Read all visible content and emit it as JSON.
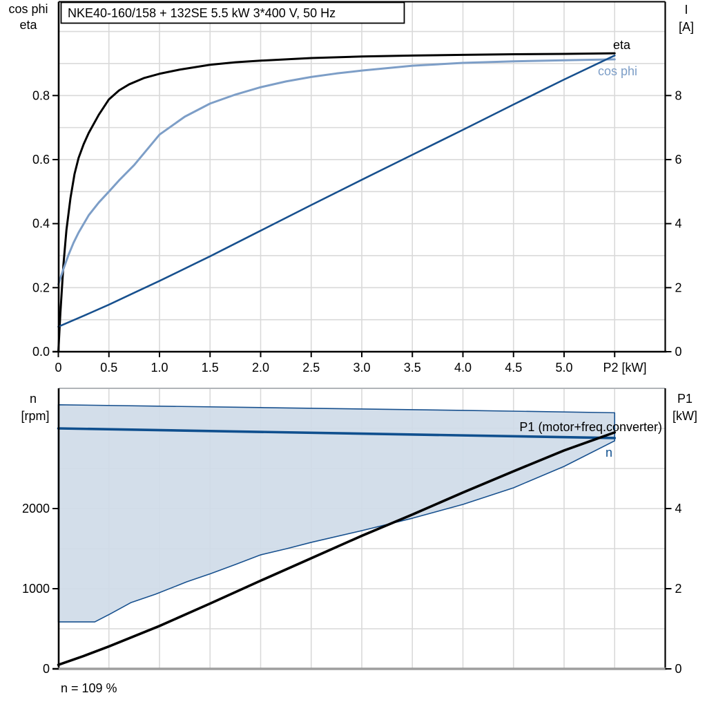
{
  "colors": {
    "eta": "#000000",
    "cos_phi": "#7d9ec7",
    "current": "#17508e",
    "n_line": "#0f4f8e",
    "p1_line": "#000000",
    "band_fill": "#cfdbe8",
    "band_edge": "#17508e",
    "grid": "#d9d9d9",
    "axis": "#000000",
    "axis_gray": "#9e9e9e",
    "frame_top_gray": "#b0b4b8"
  },
  "chart_data": [
    {
      "type": "line",
      "title": "NKE40-160/158 + 132SE   5.5 kW   3*400 V, 50 Hz",
      "y_left_header": [
        "cos phi",
        "eta"
      ],
      "y_right_header": [
        "I",
        "[A]"
      ],
      "xlabel": "P2 [kW]",
      "x_range": [
        0,
        6
      ],
      "x_grid_step": 0.5,
      "y_left_range": [
        0,
        1.093
      ],
      "y_left_grid_step": 0.1,
      "y_right_range": [
        0,
        10.93
      ],
      "y_right_grid_step": 1,
      "legend_position": "end-of-curve",
      "x_ticks": [
        {
          "v": 0,
          "t": "0"
        },
        {
          "v": 0.5,
          "t": "0.5"
        },
        {
          "v": 1,
          "t": "1.0"
        },
        {
          "v": 1.5,
          "t": "1.5"
        },
        {
          "v": 2,
          "t": "2.0"
        },
        {
          "v": 2.5,
          "t": "2.5"
        },
        {
          "v": 3,
          "t": "3.0"
        },
        {
          "v": 3.5,
          "t": "3.5"
        },
        {
          "v": 4,
          "t": "4.0"
        },
        {
          "v": 4.5,
          "t": "4.5"
        },
        {
          "v": 5,
          "t": "5.0"
        },
        {
          "v": 5.5,
          "t": ""
        }
      ],
      "y_left_ticks": [
        {
          "v": 0,
          "t": "0.0"
        },
        {
          "v": 0.2,
          "t": "0.2"
        },
        {
          "v": 0.4,
          "t": "0.4"
        },
        {
          "v": 0.6,
          "t": "0.6"
        },
        {
          "v": 0.8,
          "t": "0.8"
        }
      ],
      "y_right_ticks": [
        {
          "v": 0,
          "t": "0"
        },
        {
          "v": 2,
          "t": "2"
        },
        {
          "v": 4,
          "t": "4"
        },
        {
          "v": 6,
          "t": "6"
        },
        {
          "v": 8,
          "t": "8"
        }
      ],
      "series": [
        {
          "name": "eta",
          "axis": "left",
          "color_key": "eta",
          "width": 3,
          "label": "eta",
          "points": [
            [
              0,
              0
            ],
            [
              0.02,
              0.12
            ],
            [
              0.05,
              0.27
            ],
            [
              0.08,
              0.38
            ],
            [
              0.12,
              0.48
            ],
            [
              0.16,
              0.555
            ],
            [
              0.2,
              0.605
            ],
            [
              0.25,
              0.648
            ],
            [
              0.3,
              0.683
            ],
            [
              0.4,
              0.74
            ],
            [
              0.5,
              0.788
            ],
            [
              0.6,
              0.816
            ],
            [
              0.7,
              0.835
            ],
            [
              0.85,
              0.855
            ],
            [
              1,
              0.868
            ],
            [
              1.2,
              0.881
            ],
            [
              1.5,
              0.896
            ],
            [
              1.75,
              0.904
            ],
            [
              2,
              0.909
            ],
            [
              2.5,
              0.917
            ],
            [
              3,
              0.922
            ],
            [
              3.5,
              0.925
            ],
            [
              4,
              0.927
            ],
            [
              4.5,
              0.929
            ],
            [
              5,
              0.93
            ],
            [
              5.5,
              0.932
            ]
          ]
        },
        {
          "name": "cos phi",
          "axis": "left",
          "color_key": "cos_phi",
          "width": 3,
          "label": "cos phi",
          "points": [
            [
              0,
              0.21
            ],
            [
              0.05,
              0.258
            ],
            [
              0.1,
              0.302
            ],
            [
              0.15,
              0.34
            ],
            [
              0.2,
              0.372
            ],
            [
              0.3,
              0.426
            ],
            [
              0.4,
              0.466
            ],
            [
              0.5,
              0.5
            ],
            [
              0.6,
              0.535
            ],
            [
              0.75,
              0.583
            ],
            [
              0.9,
              0.64
            ],
            [
              1,
              0.678
            ],
            [
              1.25,
              0.734
            ],
            [
              1.5,
              0.775
            ],
            [
              1.75,
              0.803
            ],
            [
              2,
              0.826
            ],
            [
              2.25,
              0.844
            ],
            [
              2.5,
              0.858
            ],
            [
              2.75,
              0.869
            ],
            [
              3,
              0.878
            ],
            [
              3.5,
              0.893
            ],
            [
              4,
              0.902
            ],
            [
              4.5,
              0.907
            ],
            [
              5,
              0.91
            ],
            [
              5.5,
              0.913
            ]
          ]
        },
        {
          "name": "I",
          "axis": "right",
          "color_key": "current",
          "width": 2.6,
          "label": "",
          "points": [
            [
              0,
              0.78
            ],
            [
              0.25,
              1.12
            ],
            [
              0.5,
              1.47
            ],
            [
              0.75,
              1.84
            ],
            [
              1,
              2.21
            ],
            [
              1.5,
              2.98
            ],
            [
              2,
              3.78
            ],
            [
              2.5,
              4.58
            ],
            [
              3,
              5.37
            ],
            [
              3.5,
              6.15
            ],
            [
              4,
              6.93
            ],
            [
              4.5,
              7.72
            ],
            [
              5,
              8.5
            ],
            [
              5.5,
              9.25
            ]
          ]
        }
      ]
    },
    {
      "type": "line",
      "y_left_header": [
        "n",
        "[rpm]"
      ],
      "y_right_header": [
        "P1",
        "[kW]"
      ],
      "xlabel": "",
      "x_range": [
        0,
        6
      ],
      "x_grid_step": 0.5,
      "y_left_range": [
        0,
        3500
      ],
      "y_left_grid_step": 500,
      "y_right_range": [
        0,
        7
      ],
      "y_right_grid_step": 1,
      "note": "n = 109 %",
      "x_ticks": [],
      "y_left_ticks": [
        {
          "v": 0,
          "t": "0"
        },
        {
          "v": 1000,
          "t": "1000"
        },
        {
          "v": 2000,
          "t": "2000"
        }
      ],
      "y_right_ticks": [
        {
          "v": 0,
          "t": "0"
        },
        {
          "v": 2,
          "t": "2"
        },
        {
          "v": 4,
          "t": "4"
        }
      ],
      "band": {
        "meaning": "speed control range up to n = 109 %",
        "fill_key": "band_fill",
        "edge_key": "band_edge",
        "edge_width": 1.6,
        "top_points_rpm": [
          [
            0,
            3295
          ],
          [
            2,
            3260
          ],
          [
            4,
            3225
          ],
          [
            5.5,
            3195
          ]
        ],
        "bottom_points_rpm": [
          [
            0,
            586
          ],
          [
            0.36,
            586
          ],
          [
            0.52,
            690
          ],
          [
            0.72,
            828
          ],
          [
            0.96,
            931
          ],
          [
            1.27,
            1086
          ],
          [
            1.51,
            1190
          ],
          [
            1.75,
            1302
          ],
          [
            2,
            1422
          ],
          [
            2.26,
            1500
          ],
          [
            2.5,
            1578
          ],
          [
            3,
            1724
          ],
          [
            3.5,
            1879
          ],
          [
            4,
            2052
          ],
          [
            4.5,
            2259
          ],
          [
            5,
            2526
          ],
          [
            5.5,
            2845
          ]
        ]
      },
      "series": [
        {
          "name": "n",
          "axis": "left",
          "color_key": "n_line",
          "width": 3.6,
          "label": "n",
          "points": [
            [
              0,
              3000
            ],
            [
              5.5,
              2880
            ]
          ]
        },
        {
          "name": "P1 (motor+freq.converter)",
          "axis": "right",
          "color_key": "p1_line",
          "width": 3.6,
          "label": "P1 (motor+freq.converter)",
          "points": [
            [
              0,
              0.1
            ],
            [
              0.25,
              0.32
            ],
            [
              0.5,
              0.56
            ],
            [
              1,
              1.07
            ],
            [
              1.5,
              1.63
            ],
            [
              2,
              2.2
            ],
            [
              2.5,
              2.76
            ],
            [
              3,
              3.32
            ],
            [
              3.5,
              3.85
            ],
            [
              4,
              4.4
            ],
            [
              4.5,
              4.93
            ],
            [
              5,
              5.45
            ],
            [
              5.5,
              5.9
            ]
          ]
        }
      ]
    }
  ]
}
